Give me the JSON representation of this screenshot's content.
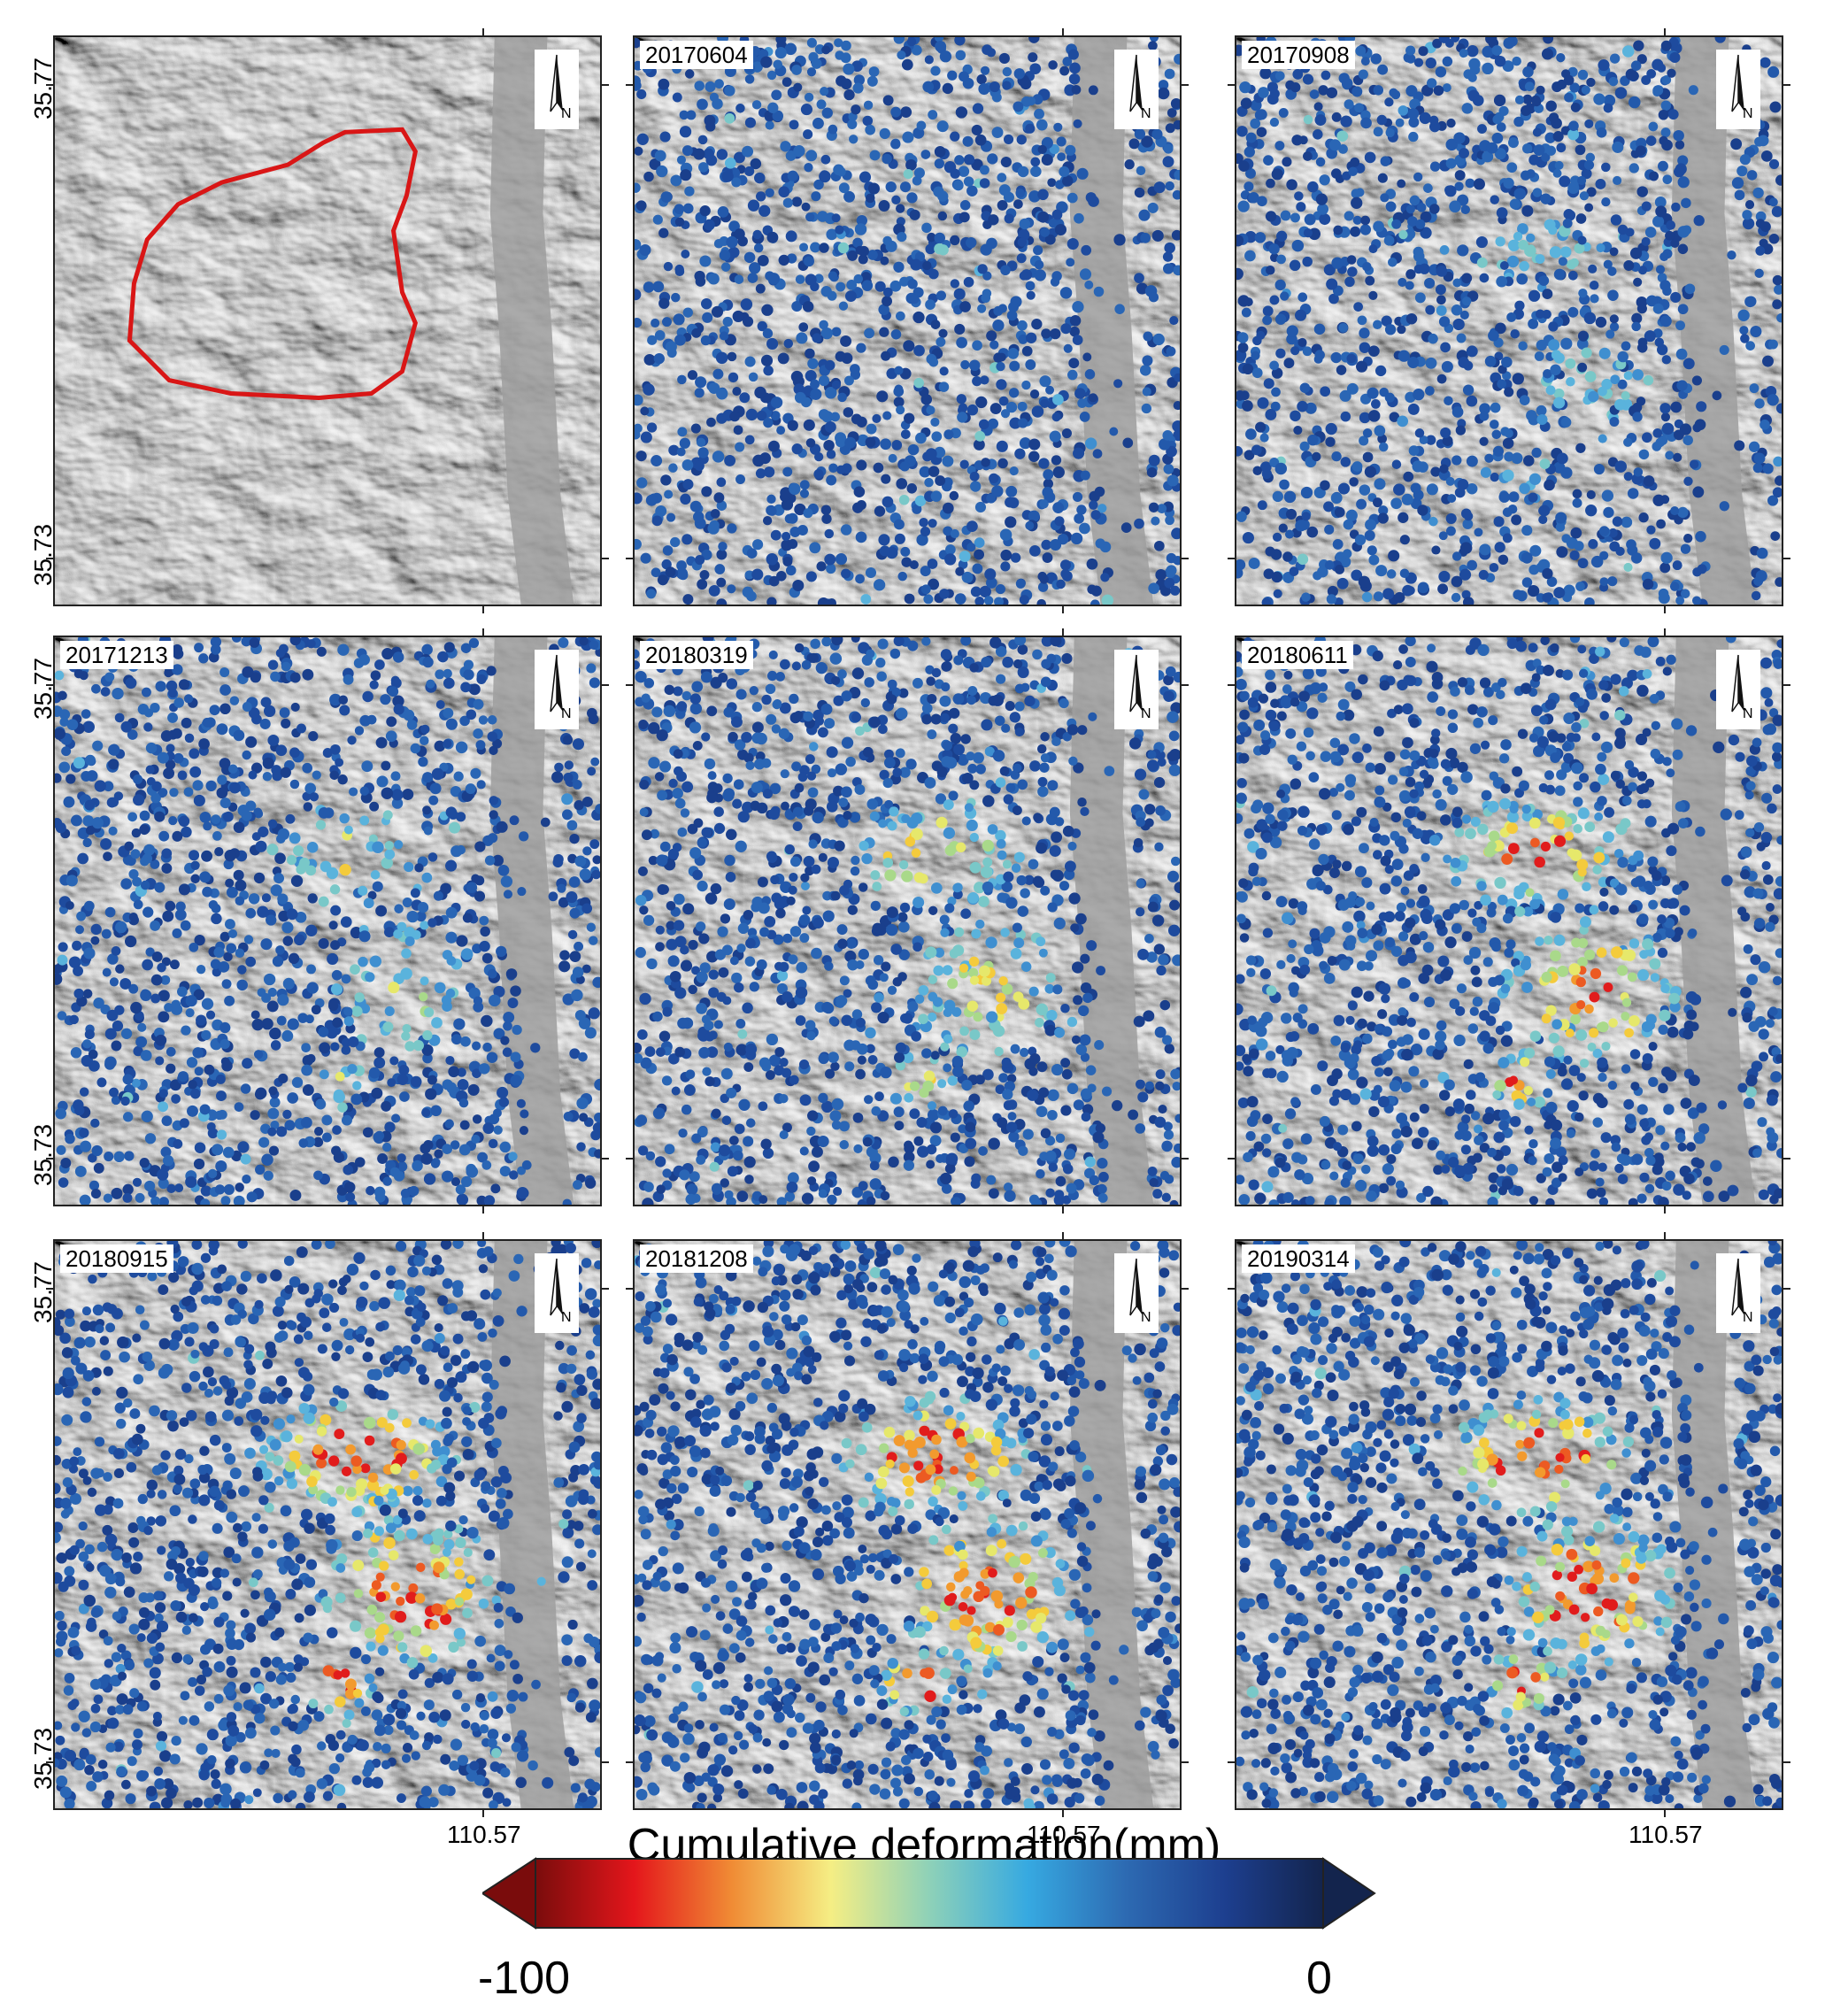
{
  "panels": [
    {
      "date": "",
      "type": "hillshade",
      "stage": 0
    },
    {
      "date": "20170604",
      "type": "deformation",
      "stage": 1
    },
    {
      "date": "20170908",
      "type": "deformation",
      "stage": 2
    },
    {
      "date": "20171213",
      "type": "deformation",
      "stage": 3
    },
    {
      "date": "20180319",
      "type": "deformation",
      "stage": 4
    },
    {
      "date": "20180611",
      "type": "deformation",
      "stage": 5
    },
    {
      "date": "20180915",
      "type": "deformation",
      "stage": 6
    },
    {
      "date": "20181208",
      "type": "deformation",
      "stage": 7
    },
    {
      "date": "20190314",
      "type": "deformation",
      "stage": 8
    }
  ],
  "axes": {
    "lat_top": "35.77",
    "lat_bottom": "35.73",
    "lon": "110.57"
  },
  "north_arrow": {
    "label": "N",
    "icon": "north-arrow-icon"
  },
  "colorbar": {
    "title": "Cumulative deformation(mm)",
    "min_label": "-100",
    "max_label": "0",
    "colors": [
      "#7a0c0c",
      "#e4161b",
      "#f08c35",
      "#f5ee84",
      "#8ed1b8",
      "#36a9e1",
      "#2d6ab2",
      "#1d3f8f",
      "#13244d"
    ]
  },
  "landslide_outline_color": "#d91616",
  "point_colors": {
    "stable": [
      "#1e4b9e",
      "#2359ab",
      "#1a3f8c",
      "#2a66b5"
    ],
    "mild": [
      "#3f8fd0",
      "#5ab3dc",
      "#79c8c8"
    ],
    "moderate": [
      "#a9d98a",
      "#e6e86b",
      "#f4cb3c"
    ],
    "strong": [
      "#f29a2e",
      "#ec5a22",
      "#e11c1c"
    ]
  }
}
